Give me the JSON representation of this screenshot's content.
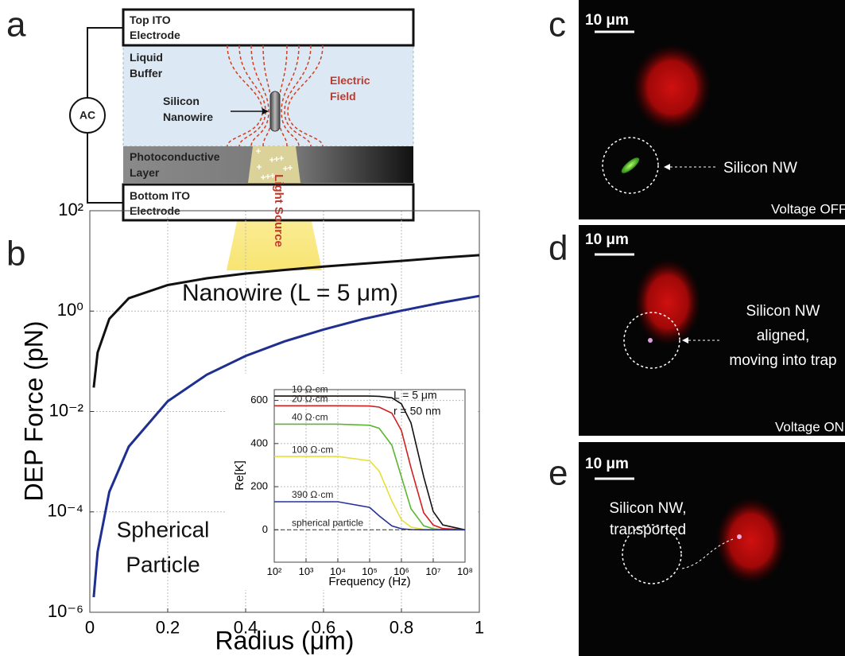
{
  "panels": {
    "a": {
      "letter": "a",
      "top_electrode": [
        "Top ITO",
        "Electrode"
      ],
      "buffer": [
        "Liquid",
        "Buffer"
      ],
      "field": [
        "Electric",
        "Field"
      ],
      "nanowire": [
        "Silicon",
        "Nanowire"
      ],
      "layer": [
        "Photoconductive",
        "Layer"
      ],
      "bottom_electrode": [
        "Bottom ITO",
        "Electrode"
      ],
      "source": "AC",
      "light": "Light Source"
    },
    "b": {
      "letter": "b"
    },
    "c": {
      "letter": "c",
      "scale": "10 μm",
      "label": [
        "Silicon NW"
      ],
      "state": "Voltage OFF"
    },
    "d": {
      "letter": "d",
      "scale": "10 μm",
      "label": [
        "Silicon NW",
        "aligned,",
        "moving into trap"
      ],
      "state": "Voltage ON"
    },
    "e": {
      "letter": "e",
      "scale": "10 μm",
      "label": [
        "Silicon NW,",
        "transported"
      ]
    }
  },
  "chart_data": [
    {
      "type": "line",
      "xlabel": "Radius (μm)",
      "ylabel": "DEP Force (pN)",
      "annotations": [
        "Nanowire (L = 5 μm)",
        "Spherical",
        "Particle"
      ],
      "x": [
        0.01,
        0.02,
        0.05,
        0.1,
        0.2,
        0.3,
        0.4,
        0.5,
        0.6,
        0.7,
        0.8,
        0.9,
        1
      ],
      "series": [
        {
          "color": "#111111",
          "values": [
            0.03,
            0.15,
            0.7,
            1.8,
            3.3,
            4.5,
            5.6,
            6.6,
            7.7,
            8.8,
            10,
            11.5,
            13
          ]
        },
        {
          "color": "#1f2f8f",
          "values": [
            2e-06,
            1.6e-05,
            0.00025,
            0.002,
            0.016,
            0.054,
            0.128,
            0.25,
            0.43,
            0.69,
            1.02,
            1.46,
            2
          ]
        }
      ],
      "xlim": [
        0,
        1
      ],
      "xticks": [
        0,
        0.2,
        0.4,
        0.6,
        0.8,
        1
      ],
      "ylim": [
        1e-06,
        100
      ],
      "ylog": true,
      "yticks": [
        {
          "value": 100,
          "label": "10²"
        },
        {
          "value": 1,
          "label": "10⁰"
        },
        {
          "value": 0.01,
          "label": "10⁻²"
        },
        {
          "value": 0.0001,
          "label": "10⁻⁴"
        },
        {
          "value": 1e-06,
          "label": "10⁻⁶"
        }
      ],
      "grid": true
    },
    {
      "type": "line",
      "xlabel": "Frequency (Hz)",
      "ylabel": "Re[K]",
      "annotations": [
        "L = 5 μm",
        "r = 50 nm"
      ],
      "x": [
        100,
        1000,
        10000,
        100000,
        200000,
        500000,
        1000000,
        2000000,
        5000000,
        10000000,
        20000000,
        100000000
      ],
      "series": [
        {
          "name": "10 Ω·cm",
          "color": "#111111",
          "values": [
            620,
            620,
            620,
            620,
            619,
            612,
            584,
            496,
            246,
            85,
            23,
            0
          ]
        },
        {
          "name": "20 Ω·cm",
          "color": "#d0201e",
          "values": [
            575,
            575,
            575,
            574,
            569,
            541,
            460,
            288,
            79,
            22,
            6,
            0
          ]
        },
        {
          "name": "40 Ω·cm",
          "color": "#5cb531",
          "values": [
            490,
            490,
            490,
            485,
            471,
            392,
            245,
            98,
            19,
            5,
            1,
            0
          ]
        },
        {
          "name": "100 Ω·cm",
          "color": "#e6e03a",
          "values": [
            340,
            340,
            340,
            320,
            272,
            133,
            47,
            13,
            2,
            1,
            0,
            0
          ]
        },
        {
          "name": "390 Ω·cm",
          "color": "#25329a",
          "values": [
            130,
            130,
            130,
            104,
            65,
            18,
            5,
            1,
            0,
            0,
            0,
            0
          ]
        },
        {
          "name": "spherical particle",
          "color": "#333333",
          "dash": true,
          "values": [
            0,
            0,
            0,
            0,
            0,
            0,
            0,
            0,
            0,
            0,
            0,
            0
          ]
        }
      ],
      "xlim": [
        100,
        100000000
      ],
      "xlog": true,
      "xticks": [
        {
          "value": 100,
          "label": "10²"
        },
        {
          "value": 1000,
          "label": "10³"
        },
        {
          "value": 10000,
          "label": "10⁴"
        },
        {
          "value": 100000,
          "label": "10⁵"
        },
        {
          "value": 1000000,
          "label": "10⁶"
        },
        {
          "value": 10000000,
          "label": "10⁷"
        },
        {
          "value": 100000000,
          "label": "10⁸"
        }
      ],
      "ylim": [
        -150,
        650
      ],
      "yticks": [
        0,
        200,
        400,
        600
      ],
      "grid": true
    }
  ]
}
